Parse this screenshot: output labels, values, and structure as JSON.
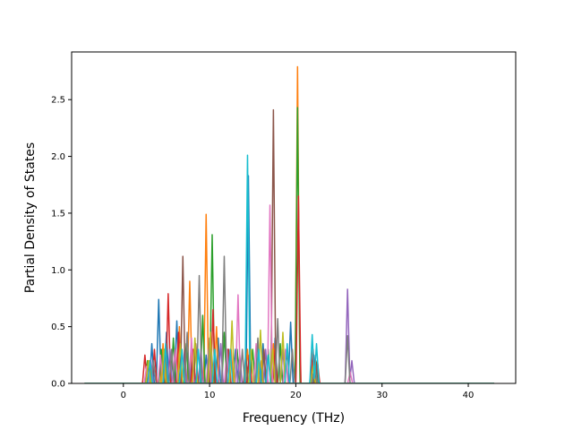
{
  "chart_data": {
    "type": "line",
    "title": "",
    "xlabel": "Frequency (THz)",
    "ylabel": "Partial Density of States",
    "xlim": [
      -6.0,
      45.5
    ],
    "ylim": [
      0.0,
      2.92
    ],
    "xticks": [
      0,
      10,
      20,
      30,
      40
    ],
    "xtick_labels": [
      "0",
      "10",
      "20",
      "30",
      "40"
    ],
    "yticks": [
      0.0,
      0.5,
      1.0,
      1.5,
      2.0,
      2.5
    ],
    "ytick_labels": [
      "0.0",
      "0.5",
      "1.0",
      "1.5",
      "2.0",
      "2.5"
    ],
    "grid": false,
    "legend": "none",
    "x_start": -4.5,
    "x_end": 43.0,
    "series": [
      {
        "color": "#1f77b4",
        "peaks": [
          [
            3.3,
            0.35
          ],
          [
            4.1,
            0.74
          ],
          [
            5.0,
            0.45
          ],
          [
            6.2,
            0.55
          ],
          [
            8.0,
            0.3
          ],
          [
            9.6,
            0.25
          ],
          [
            11.0,
            0.4
          ],
          [
            13.0,
            0.3
          ],
          [
            14.5,
            1.83
          ],
          [
            16.2,
            0.35
          ],
          [
            17.6,
            0.4
          ],
          [
            19.4,
            0.54
          ],
          [
            22.1,
            0.25
          ]
        ]
      },
      {
        "color": "#ff7f0e",
        "peaks": [
          [
            3.0,
            0.2
          ],
          [
            4.6,
            0.35
          ],
          [
            6.5,
            0.5
          ],
          [
            7.7,
            0.9
          ],
          [
            9.6,
            1.49
          ],
          [
            10.8,
            0.5
          ],
          [
            12.5,
            0.3
          ],
          [
            14.4,
            0.3
          ],
          [
            16.0,
            0.2
          ],
          [
            17.4,
            0.35
          ],
          [
            20.2,
            2.79
          ],
          [
            22.0,
            0.2
          ]
        ]
      },
      {
        "color": "#2ca02c",
        "peaks": [
          [
            2.8,
            0.2
          ],
          [
            4.4,
            0.3
          ],
          [
            5.8,
            0.4
          ],
          [
            7.3,
            0.35
          ],
          [
            9.2,
            0.6
          ],
          [
            10.3,
            1.31
          ],
          [
            11.7,
            0.45
          ],
          [
            13.2,
            0.3
          ],
          [
            15.0,
            0.3
          ],
          [
            16.8,
            0.3
          ],
          [
            18.2,
            0.35
          ],
          [
            20.2,
            2.43
          ],
          [
            22.3,
            0.2
          ]
        ]
      },
      {
        "color": "#d62728",
        "peaks": [
          [
            2.5,
            0.25
          ],
          [
            3.6,
            0.3
          ],
          [
            5.2,
            0.79
          ],
          [
            6.4,
            0.45
          ],
          [
            8.1,
            0.3
          ],
          [
            10.4,
            0.65
          ],
          [
            12.2,
            0.3
          ],
          [
            14.6,
            0.25
          ],
          [
            17.6,
            0.3
          ],
          [
            20.3,
            1.65
          ],
          [
            22.0,
            0.3
          ],
          [
            22.5,
            0.2
          ]
        ]
      },
      {
        "color": "#9467bd",
        "peaks": [
          [
            3.2,
            0.2
          ],
          [
            5.4,
            0.3
          ],
          [
            7.1,
            0.3
          ],
          [
            9.0,
            0.3
          ],
          [
            11.3,
            0.35
          ],
          [
            13.5,
            0.25
          ],
          [
            16.5,
            0.3
          ],
          [
            18.5,
            0.3
          ],
          [
            22.2,
            0.15
          ],
          [
            26.0,
            0.83
          ],
          [
            26.5,
            0.2
          ]
        ]
      },
      {
        "color": "#8c564b",
        "peaks": [
          [
            3.0,
            0.15
          ],
          [
            4.8,
            0.3
          ],
          [
            6.9,
            1.12
          ],
          [
            8.4,
            0.35
          ],
          [
            10.2,
            0.3
          ],
          [
            12.1,
            0.3
          ],
          [
            14.2,
            0.25
          ],
          [
            16.3,
            0.3
          ],
          [
            17.4,
            2.41
          ],
          [
            19.0,
            0.3
          ],
          [
            22.4,
            0.15
          ]
        ]
      },
      {
        "color": "#e377c2",
        "peaks": [
          [
            2.7,
            0.15
          ],
          [
            4.3,
            0.25
          ],
          [
            6.0,
            0.3
          ],
          [
            7.9,
            0.4
          ],
          [
            9.9,
            0.3
          ],
          [
            12.0,
            0.3
          ],
          [
            13.3,
            0.78
          ],
          [
            15.4,
            0.35
          ],
          [
            17.0,
            1.57
          ],
          [
            18.8,
            0.3
          ],
          [
            26.3,
            0.1
          ]
        ]
      },
      {
        "color": "#7f7f7f",
        "peaks": [
          [
            3.5,
            0.2
          ],
          [
            5.6,
            0.3
          ],
          [
            7.4,
            0.45
          ],
          [
            8.8,
            0.95
          ],
          [
            10.0,
            0.4
          ],
          [
            11.7,
            1.12
          ],
          [
            13.8,
            0.3
          ],
          [
            15.6,
            0.4
          ],
          [
            17.9,
            0.57
          ],
          [
            19.6,
            0.3
          ],
          [
            22.2,
            0.15
          ],
          [
            26.0,
            0.42
          ]
        ]
      },
      {
        "color": "#bcbd22",
        "peaks": [
          [
            2.9,
            0.2
          ],
          [
            4.7,
            0.3
          ],
          [
            6.6,
            0.35
          ],
          [
            8.3,
            0.4
          ],
          [
            10.1,
            0.45
          ],
          [
            12.6,
            0.55
          ],
          [
            14.8,
            0.3
          ],
          [
            15.9,
            0.47
          ],
          [
            17.3,
            0.3
          ],
          [
            18.5,
            0.45
          ],
          [
            22.0,
            0.15
          ]
        ]
      },
      {
        "color": "#17becf",
        "peaks": [
          [
            3.1,
            0.2
          ],
          [
            4.9,
            0.35
          ],
          [
            6.8,
            0.3
          ],
          [
            8.7,
            0.3
          ],
          [
            10.6,
            0.3
          ],
          [
            12.4,
            0.3
          ],
          [
            14.4,
            2.01
          ],
          [
            15.7,
            0.3
          ],
          [
            16.8,
            0.25
          ],
          [
            19.0,
            0.35
          ],
          [
            21.9,
            0.43
          ],
          [
            22.4,
            0.35
          ]
        ]
      }
    ]
  }
}
